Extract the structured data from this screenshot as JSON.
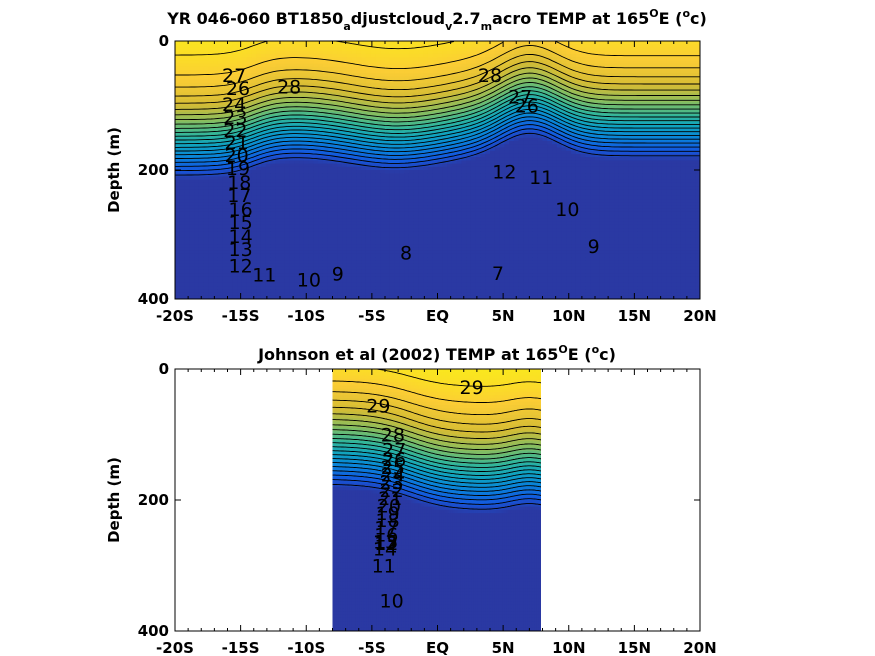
{
  "chart_data": [
    {
      "type": "heatmap",
      "title_parts": [
        "YR 046-060 BT1850",
        "a",
        "djustcloud",
        "v",
        "2.7",
        "m",
        "acro TEMP at 165",
        "O",
        "E (",
        "o",
        "c)"
      ],
      "ylabel": "Depth (m)",
      "x_ticklabels": [
        "-20S",
        "-15S",
        "-10S",
        "-5S",
        "EQ",
        "5N",
        "10N",
        "15N",
        "20N"
      ],
      "x_tick_values": [
        -20,
        -15,
        -10,
        -5,
        0,
        5,
        10,
        15,
        20
      ],
      "y_ticklabels": [
        "0",
        "200",
        "400"
      ],
      "y_tick_values": [
        0,
        200,
        400
      ],
      "xlim": [
        -20,
        20
      ],
      "ylim": [
        0,
        400
      ],
      "y_reversed": true,
      "colormap": "parula",
      "color_range": [
        5,
        30
      ],
      "contour_interval": 1,
      "contour_labels": [
        {
          "text": "27",
          "x": -15.5,
          "y": 55
        },
        {
          "text": "26",
          "x": -15.2,
          "y": 75
        },
        {
          "text": "28",
          "x": -11.3,
          "y": 73
        },
        {
          "text": "28",
          "x": 4.0,
          "y": 55
        },
        {
          "text": "27",
          "x": 6.3,
          "y": 88
        },
        {
          "text": "26",
          "x": 6.8,
          "y": 102
        },
        {
          "text": "12",
          "x": 5.1,
          "y": 205
        },
        {
          "text": "11",
          "x": 7.9,
          "y": 213
        },
        {
          "text": "10",
          "x": 9.9,
          "y": 263
        },
        {
          "text": "9",
          "x": 11.9,
          "y": 320
        },
        {
          "text": "8",
          "x": -2.4,
          "y": 330
        },
        {
          "text": "7",
          "x": 4.6,
          "y": 362
        },
        {
          "text": "9",
          "x": -7.6,
          "y": 363
        },
        {
          "text": "10",
          "x": -9.8,
          "y": 372
        },
        {
          "text": "11",
          "x": -13.2,
          "y": 364
        },
        {
          "text": "12",
          "x": -15.0,
          "y": 350
        },
        {
          "text": "13",
          "x": -15.0,
          "y": 325
        },
        {
          "text": "14",
          "x": -15.0,
          "y": 305
        },
        {
          "text": "15",
          "x": -15.0,
          "y": 283
        },
        {
          "text": "16",
          "x": -15.0,
          "y": 263
        },
        {
          "text": "17",
          "x": -15.1,
          "y": 241
        },
        {
          "text": "18",
          "x": -15.1,
          "y": 221
        },
        {
          "text": "19",
          "x": -15.2,
          "y": 199
        },
        {
          "text": "20",
          "x": -15.3,
          "y": 179
        },
        {
          "text": "21",
          "x": -15.3,
          "y": 159
        },
        {
          "text": "22",
          "x": -15.4,
          "y": 140
        },
        {
          "text": "23",
          "x": -15.4,
          "y": 120
        },
        {
          "text": "24",
          "x": -15.5,
          "y": 100
        }
      ]
    },
    {
      "type": "heatmap",
      "title_parts": [
        "Johnson et al (2002) TEMP at 165",
        "O",
        "E (",
        "o",
        "c)"
      ],
      "ylabel": "Depth (m)",
      "x_ticklabels": [
        "-20S",
        "-15S",
        "-10S",
        "-5S",
        "EQ",
        "5N",
        "10N",
        "15N",
        "20N"
      ],
      "x_tick_values": [
        -20,
        -15,
        -10,
        -5,
        0,
        5,
        10,
        15,
        20
      ],
      "y_ticklabels": [
        "0",
        "200",
        "400"
      ],
      "y_tick_values": [
        0,
        200,
        400
      ],
      "xlim": [
        -20,
        20
      ],
      "ylim": [
        0,
        400
      ],
      "y_reversed": true,
      "data_xrange": [
        -8,
        8
      ],
      "colormap": "parula",
      "color_range": [
        5,
        30
      ],
      "contour_interval": 1,
      "contour_labels": [
        {
          "text": "29",
          "x": 2.6,
          "y": 30
        },
        {
          "text": "29",
          "x": -4.5,
          "y": 58
        },
        {
          "text": "28",
          "x": -3.4,
          "y": 102
        },
        {
          "text": "27",
          "x": -3.3,
          "y": 125
        },
        {
          "text": "26",
          "x": -3.3,
          "y": 140
        },
        {
          "text": "25",
          "x": -3.4,
          "y": 152
        },
        {
          "text": "24",
          "x": -3.4,
          "y": 163
        },
        {
          "text": "23",
          "x": -3.5,
          "y": 175
        },
        {
          "text": "22",
          "x": -3.5,
          "y": 187
        },
        {
          "text": "21",
          "x": -3.6,
          "y": 199
        },
        {
          "text": "20",
          "x": -3.7,
          "y": 211
        },
        {
          "text": "19",
          "x": -3.8,
          "y": 222
        },
        {
          "text": "18",
          "x": -3.8,
          "y": 233
        },
        {
          "text": "17",
          "x": -3.9,
          "y": 244
        },
        {
          "text": "16",
          "x": -3.9,
          "y": 255
        },
        {
          "text": "15",
          "x": -3.9,
          "y": 266
        },
        {
          "text": "14",
          "x": -4.0,
          "y": 276
        },
        {
          "text": "13",
          "x": -4.0,
          "y": 266
        },
        {
          "text": "12",
          "x": -3.9,
          "y": 268
        },
        {
          "text": "11",
          "x": -4.1,
          "y": 302
        },
        {
          "text": "10",
          "x": -3.5,
          "y": 356
        }
      ]
    }
  ]
}
